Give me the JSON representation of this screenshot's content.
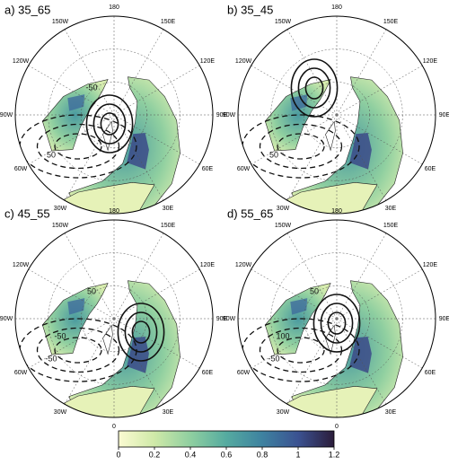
{
  "panels": [
    {
      "title": "a) 35_65",
      "contour_labels": [
        "50",
        "-50"
      ]
    },
    {
      "title": "b) 35_45",
      "contour_labels": [
        "50"
      ]
    },
    {
      "title": "c) 45_55",
      "contour_labels": [
        "-50",
        "50",
        "-50"
      ]
    },
    {
      "title": "d) 55_65",
      "contour_labels": [
        "-50",
        "50",
        "100"
      ]
    }
  ],
  "longitude_labels": [
    "180",
    "150E",
    "120E",
    "90E",
    "60E",
    "30E",
    "0",
    "30W",
    "60W",
    "90W",
    "120W",
    "150W"
  ],
  "colorbar": {
    "range": [
      0,
      1.2
    ],
    "ticks": [
      0,
      0.2,
      0.4,
      0.6,
      0.8,
      1,
      1.2
    ],
    "colors": [
      "#fbfbd2",
      "#cfe9a8",
      "#8fcfa0",
      "#55aba0",
      "#3e82a0",
      "#3b5291",
      "#2b1c3a"
    ]
  }
}
